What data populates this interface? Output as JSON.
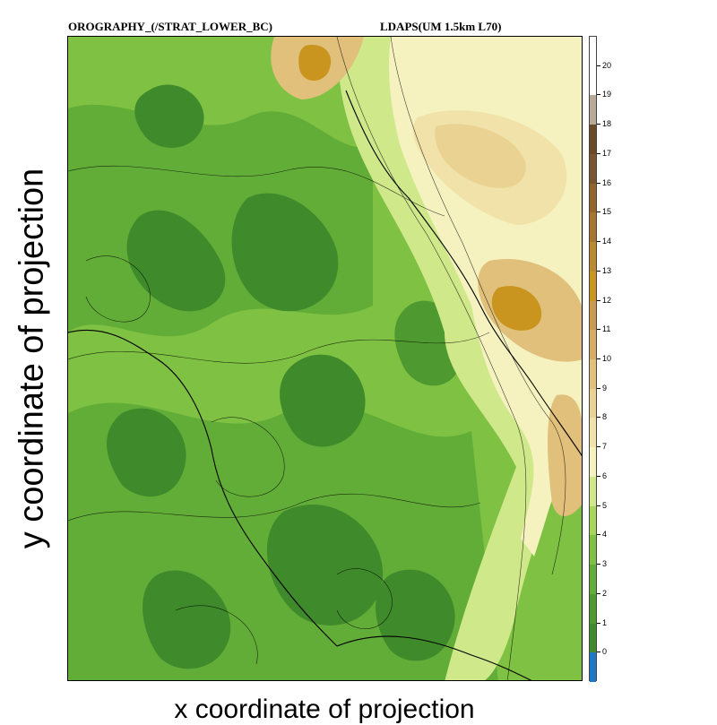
{
  "title_left": "OROGRAPHY_(/STRAT_LOWER_BC)",
  "title_right": "LDAPS(UM 1.5km L70)",
  "x_axis_label": "x coordinate of projection",
  "y_axis_label": "y coordinate of projection",
  "colorbar": {
    "tick_labels": [
      "0",
      "1",
      "2",
      "3",
      "4",
      "5",
      "6",
      "7",
      "8",
      "9",
      "10",
      "11",
      "12",
      "13",
      "14",
      "15",
      "16",
      "17",
      "18",
      "19",
      "20"
    ],
    "colors": [
      "#1f77c8",
      "#3f8a2a",
      "#4f9a30",
      "#62ad38",
      "#7fc142",
      "#a7d65a",
      "#cfe88a",
      "#f5f2c0",
      "#f0e2a8",
      "#e9d292",
      "#e0c07a",
      "#d6ac62",
      "#cc9a4e",
      "#c9951e",
      "#b98a30",
      "#a7762e",
      "#94652a",
      "#7a5530",
      "#6b4a2a",
      "#b7aa9a",
      "#ffffff"
    ]
  },
  "colors": {
    "low_land": "#3f8a2a",
    "plain": "#7fc142",
    "upland": "#cfe88a",
    "highland": "#e9d292",
    "peak": "#c9951e"
  }
}
